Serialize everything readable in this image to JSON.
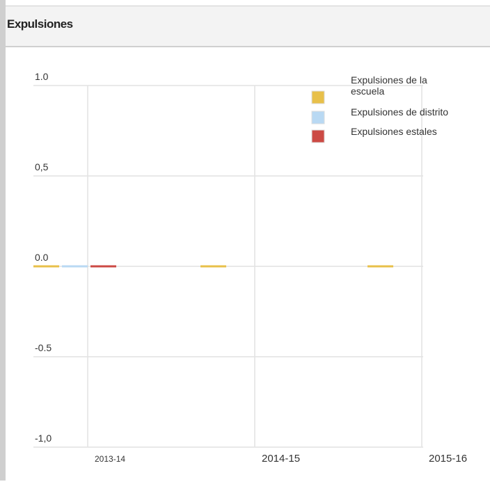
{
  "header": {
    "title": "Expulsiones"
  },
  "chart_data": {
    "type": "bar",
    "title": "",
    "xlabel": "",
    "ylabel": "",
    "categories": [
      "2013-14",
      "2014-15",
      "2015-16"
    ],
    "ylim": [
      -1.0,
      1.0
    ],
    "y_ticks": [
      {
        "value": 1.0,
        "label": "1.0"
      },
      {
        "value": 0.5,
        "label": "0,5"
      },
      {
        "value": 0.0,
        "label": "0.0"
      },
      {
        "value": -0.5,
        "label": "-0.5"
      },
      {
        "value": -1.0,
        "label": "-1,0"
      }
    ],
    "grid": true,
    "legend_position": "top-right",
    "series": [
      {
        "name": "Expulsiones de la escuela",
        "color": "#e8c04a",
        "values": [
          0,
          0,
          0
        ]
      },
      {
        "name": "Expulsiones de distrito",
        "color": "#b9d9f3",
        "values": [
          0,
          null,
          null
        ]
      },
      {
        "name": "Expulsiones estales",
        "color": "#cc4a44",
        "values": [
          0,
          null,
          null
        ]
      }
    ],
    "legend": {
      "items": [
        {
          "lines": [
            "Expulsiones de la",
            "escuela"
          ],
          "color": "#e8c04a"
        },
        {
          "lines": [
            "Expulsiones de distrito"
          ],
          "color": "#b9d9f3"
        },
        {
          "lines": [
            "Expulsiones estales"
          ],
          "color": "#cc4a44"
        }
      ]
    }
  }
}
